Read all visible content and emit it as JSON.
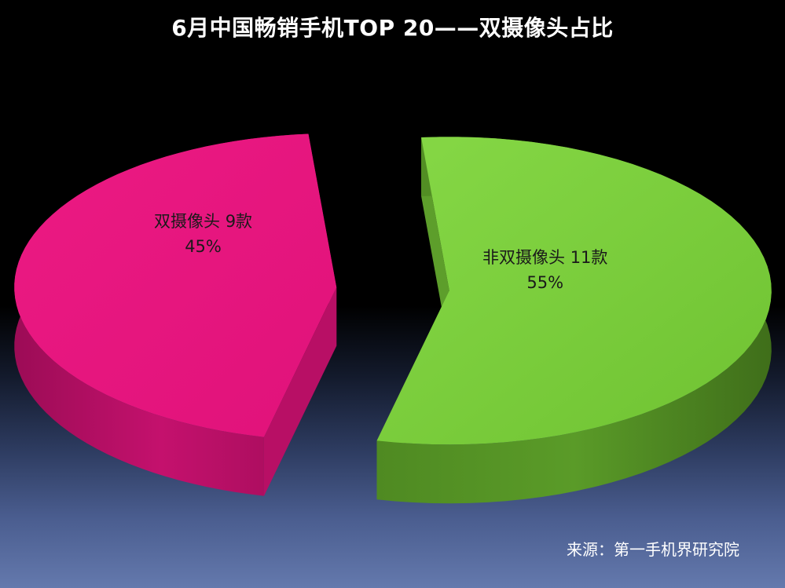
{
  "chart_data": {
    "type": "pie",
    "title": "6月中国畅销手机TOP 20——双摄像头占比",
    "slices": [
      {
        "name": "双摄像头",
        "count_label": "9款",
        "count": 9,
        "percent_label": "45%",
        "value": 45,
        "color": "#e8157e"
      },
      {
        "name": "非双摄像头",
        "count_label": "11款",
        "count": 11,
        "percent_label": "55%",
        "value": 55,
        "color": "#7ad03c"
      }
    ]
  },
  "source": "来源：第一手机界研究院"
}
